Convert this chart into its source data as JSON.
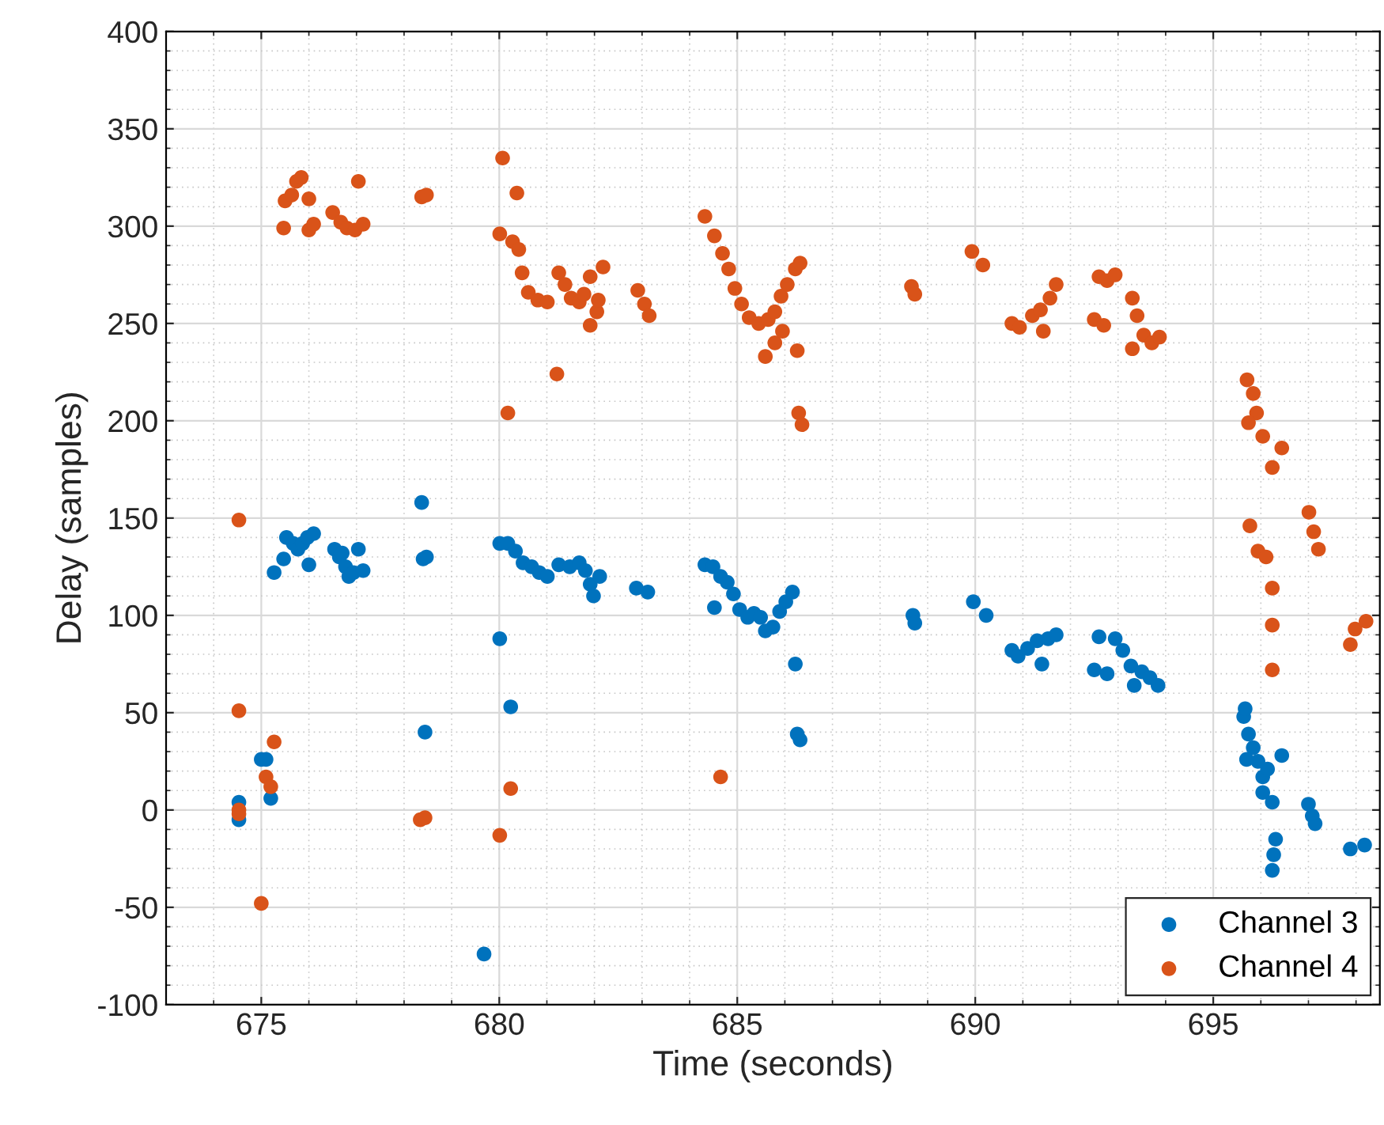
{
  "chart_data": {
    "type": "scatter",
    "xlabel": "Time (seconds)",
    "ylabel": "Delay (samples)",
    "xlim": [
      673,
      698.5
    ],
    "xticks": [
      675,
      680,
      685,
      690,
      695
    ],
    "ylim": [
      -100,
      400
    ],
    "yticks": [
      -100,
      -50,
      0,
      50,
      100,
      150,
      200,
      250,
      300,
      350,
      400
    ],
    "grid": true,
    "legend": "bottom right",
    "marker": "circle",
    "series": [
      {
        "name": "Channel 3",
        "color": "#0072bd",
        "x": [
          674.53,
          674.53,
          675.0,
          675.1,
          675.2,
          675.27,
          675.47,
          675.53,
          675.67,
          675.77,
          675.87,
          675.97,
          676.1,
          676.0,
          676.54,
          676.64,
          676.7,
          676.77,
          676.84,
          676.94,
          677.04,
          677.14,
          678.37,
          678.4,
          678.47,
          678.44,
          679.68,
          680.01,
          680.01,
          680.18,
          680.34,
          680.24,
          680.5,
          680.68,
          680.84,
          681.01,
          681.25,
          681.48,
          681.68,
          681.81,
          681.91,
          681.98,
          682.11,
          682.88,
          683.12,
          684.32,
          684.49,
          684.65,
          684.79,
          684.92,
          685.05,
          685.22,
          685.35,
          685.49,
          685.59,
          685.75,
          685.89,
          686.02,
          686.16,
          684.52,
          686.22,
          686.26,
          686.32,
          688.69,
          688.73,
          689.96,
          690.23,
          690.77,
          690.9,
          691.1,
          691.3,
          691.53,
          691.7,
          691.4,
          692.5,
          692.77,
          692.6,
          692.94,
          693.1,
          693.27,
          693.34,
          693.5,
          693.67,
          693.84,
          695.64,
          695.67,
          695.74,
          695.84,
          695.94,
          696.04,
          695.7,
          696.14,
          696.44,
          696.04,
          696.24,
          696.31,
          696.27,
          696.24,
          697.0,
          697.08,
          697.14,
          697.88,
          698.18
        ],
        "values": [
          -5,
          4,
          26,
          26,
          6,
          122,
          129,
          140,
          137,
          134,
          137,
          140,
          142,
          126,
          134,
          130,
          132,
          125,
          120,
          122,
          134,
          123,
          158,
          129,
          130,
          40,
          -74,
          88,
          137,
          137,
          133,
          53,
          127,
          125,
          122,
          120,
          126,
          125,
          127,
          123,
          116,
          110,
          120,
          114,
          112,
          126,
          125,
          120,
          117,
          111,
          103,
          99,
          101,
          99,
          92,
          94,
          102,
          107,
          112,
          104,
          75,
          39,
          36,
          100,
          96,
          107,
          100,
          82,
          79,
          83,
          87,
          88,
          90,
          75,
          72,
          70,
          89,
          88,
          82,
          74,
          64,
          71,
          68,
          64,
          48,
          52,
          39,
          32,
          25,
          17,
          26,
          21,
          28,
          9,
          4,
          -15,
          -23,
          -31,
          3,
          -3,
          -7,
          -20,
          -18
        ]
      },
      {
        "name": "Channel 4",
        "color": "#d95319",
        "x": [
          674.53,
          674.53,
          674.53,
          674.53,
          675.0,
          675.27,
          675.1,
          675.2,
          675.47,
          675.5,
          675.64,
          675.74,
          675.84,
          676.0,
          676.0,
          676.1,
          676.5,
          676.67,
          676.8,
          676.97,
          677.14,
          677.04,
          678.37,
          678.47,
          678.34,
          678.44,
          680.07,
          680.37,
          680.01,
          680.28,
          680.41,
          680.48,
          680.61,
          680.81,
          681.01,
          680.01,
          680.24,
          680.18,
          681.21,
          681.25,
          681.38,
          681.51,
          681.68,
          681.78,
          681.91,
          682.18,
          681.91,
          682.05,
          682.08,
          682.91,
          683.05,
          683.15,
          684.32,
          684.52,
          684.69,
          684.82,
          684.95,
          685.09,
          685.25,
          685.45,
          685.65,
          685.79,
          685.92,
          686.05,
          686.22,
          686.32,
          685.59,
          685.79,
          685.95,
          686.26,
          686.29,
          686.36,
          684.65,
          688.66,
          688.73,
          689.93,
          690.16,
          690.77,
          690.93,
          691.2,
          691.37,
          691.57,
          691.7,
          691.43,
          692.6,
          692.77,
          692.94,
          692.5,
          692.7,
          693.3,
          693.4,
          693.54,
          693.71,
          693.87,
          693.3,
          695.71,
          695.84,
          695.91,
          695.74,
          696.04,
          696.44,
          696.24,
          695.77,
          695.94,
          696.11,
          697.01,
          697.11,
          697.21,
          696.24,
          696.24,
          696.24,
          697.88,
          697.98,
          698.21
        ],
        "values": [
          149,
          51,
          0,
          -2,
          -48,
          35,
          17,
          12,
          299,
          313,
          316,
          323,
          325,
          314,
          298,
          301,
          307,
          302,
          299,
          298,
          301,
          323,
          315,
          316,
          -5,
          -4,
          335,
          317,
          296,
          292,
          288,
          276,
          266,
          262,
          261,
          -13,
          11,
          204,
          224,
          276,
          270,
          263,
          261,
          265,
          274,
          279,
          249,
          256,
          262,
          267,
          260,
          254,
          305,
          295,
          286,
          278,
          268,
          260,
          253,
          250,
          252,
          256,
          264,
          270,
          278,
          281,
          233,
          240,
          246,
          236,
          204,
          198,
          17,
          269,
          265,
          287,
          280,
          250,
          248,
          254,
          257,
          263,
          270,
          246,
          274,
          272,
          275,
          252,
          249,
          263,
          254,
          244,
          240,
          243,
          237,
          221,
          214,
          204,
          199,
          192,
          186,
          176,
          146,
          133,
          130,
          153,
          143,
          134,
          114,
          95,
          72,
          85,
          93,
          97
        ]
      }
    ]
  }
}
